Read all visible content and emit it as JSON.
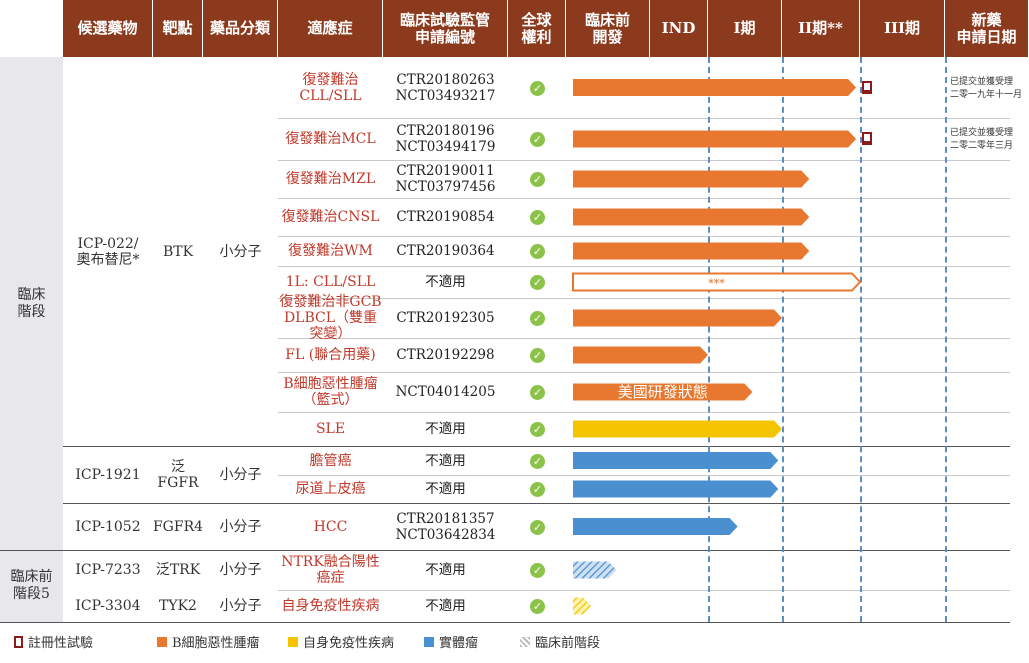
{
  "headers": [
    "候選藥物",
    "靶點",
    "藥品分類",
    "適應症",
    "臨床試驗監管\n申請編號",
    "全球\n權利",
    "臨床前\n開發",
    "IND",
    "I期",
    "II期**",
    "III期",
    "新藥\n申請日期"
  ],
  "stages": [
    {
      "label": "臨床\n階段"
    },
    {
      "label": "臨床前\n階段5"
    }
  ],
  "drug_groups": [
    {
      "drug": "ICP-022/\n奧布替尼*",
      "target": "BTK",
      "class": "小分子"
    },
    {
      "drug": "ICP-1921",
      "target": "泛FGFR",
      "class": "小分子"
    },
    {
      "drug": "ICP-1052",
      "target": "FGFR4",
      "class": "小分子"
    },
    {
      "drug": "ICP-7233",
      "target": "泛TRK",
      "class": "小分子"
    },
    {
      "drug": "ICP-3304",
      "target": "TYK2",
      "class": "小分子"
    }
  ],
  "rows": [
    {
      "indication": "復發難治CLL/SLL",
      "trial": "CTR20180263\nNCT03493217"
    },
    {
      "indication": "復發難治MCL",
      "trial": "CTR20180196\nNCT03494179"
    },
    {
      "indication": "復發難治MZL",
      "trial": "CTR20190011\nNCT03797456"
    },
    {
      "indication": "復發難治CNSL",
      "trial": "CTR20190854"
    },
    {
      "indication": "復發難治WM",
      "trial": "CTR20190364"
    },
    {
      "indication": "1L: CLL/SLL",
      "trial": "不適用"
    },
    {
      "indication": "復發難治非GCB\nDLBCL（雙重突變）",
      "trial": "CTR20192305"
    },
    {
      "indication": "FL (聯合用藥)",
      "trial": "CTR20192298"
    },
    {
      "indication": "B細胞惡性腫瘤\n（籃式）",
      "trial": "NCT04014205"
    },
    {
      "indication": "SLE",
      "trial": "不適用"
    },
    {
      "indication": "膽管癌",
      "trial": "不適用"
    },
    {
      "indication": "尿道上皮癌",
      "trial": "不適用"
    },
    {
      "indication": "HCC",
      "trial": "CTR20181357\nNCT03642834"
    },
    {
      "indication": "NTRK融合陽性癌症",
      "trial": "不適用"
    },
    {
      "indication": "自身免疫性疾病",
      "trial": "不適用"
    }
  ],
  "nda_notes": [
    "已提交並獲受理\n二零一九年十一月",
    "已提交並獲受理\n二零二零年三月"
  ],
  "chart_data": {
    "type": "bar",
    "orientation": "horizontal-progress",
    "phases": [
      "臨床前開發",
      "IND",
      "I期",
      "II期**",
      "III期",
      "新藥申請日期"
    ],
    "bars": [
      {
        "row": "復發難治CLL/SLL",
        "progress_phase": "III期",
        "progress": 3.95,
        "category": "B細胞惡性腫瘤",
        "registrational": true
      },
      {
        "row": "復發難治MCL",
        "progress_phase": "III期",
        "progress": 3.95,
        "category": "B細胞惡性腫瘤",
        "registrational": true
      },
      {
        "row": "復發難治MZL",
        "progress_phase": "II期**",
        "progress": 3.35,
        "category": "B細胞惡性腫瘤"
      },
      {
        "row": "復發難治CNSL",
        "progress_phase": "II期**",
        "progress": 3.35,
        "category": "B細胞惡性腫瘤"
      },
      {
        "row": "復發難治WM",
        "progress_phase": "II期**",
        "progress": 3.35,
        "category": "B細胞惡性腫瘤"
      },
      {
        "row": "1L: CLL/SLL",
        "progress_phase": "III期",
        "progress": 4.0,
        "category": "B細胞惡性腫瘤",
        "outline": true,
        "label": "***"
      },
      {
        "row": "復發難治非GCB DLBCL（雙重突變）",
        "progress_phase": "II期**",
        "progress": 3.0,
        "category": "B細胞惡性腫瘤"
      },
      {
        "row": "FL (聯合用藥)",
        "progress_phase": "I期",
        "progress": 2.0,
        "category": "B細胞惡性腫瘤"
      },
      {
        "row": "B細胞惡性腫瘤（籃式）",
        "progress_phase": "I期",
        "progress": 2.6,
        "category": "B細胞惡性腫瘤",
        "label": "美國研發狀態"
      },
      {
        "row": "SLE",
        "progress_phase": "II期**",
        "progress": 3.0,
        "category": "自身免疫性疾病"
      },
      {
        "row": "膽管癌",
        "progress_phase": "II期**",
        "progress": 2.95,
        "category": "實體瘤"
      },
      {
        "row": "尿道上皮癌",
        "progress_phase": "II期**",
        "progress": 2.95,
        "category": "實體瘤"
      },
      {
        "row": "HCC",
        "progress_phase": "I期",
        "progress": 2.4,
        "category": "實體瘤"
      },
      {
        "row": "NTRK融合陽性癌症",
        "progress_phase": "臨床前開發",
        "progress": 0.6,
        "category": "臨床前階段"
      },
      {
        "row": "自身免疫性疾病",
        "progress_phase": "臨床前開發",
        "progress": 0.3,
        "category": "臨床前階段"
      }
    ],
    "colors": {
      "B細胞惡性腫瘤": "#e87830",
      "自身免疫性疾病": "#f5c400",
      "實體瘤": "#4a8fd0",
      "臨床前階段": "#5b8fc4",
      "註冊性試驗": "#8b1a1a"
    }
  },
  "legend": [
    {
      "label": "註冊性試驗",
      "color": "#8b1a1a",
      "kind": "flag"
    },
    {
      "label": "B細胞惡性腫瘤",
      "color": "#e87830",
      "kind": "solid"
    },
    {
      "label": "自身免疫性疾病",
      "color": "#f5c400",
      "kind": "solid"
    },
    {
      "label": "實體瘤",
      "color": "#4a8fd0",
      "kind": "solid"
    },
    {
      "label": "臨床前階段",
      "color": "#9aa",
      "kind": "hatch"
    }
  ],
  "global_rights_icon": "check-circle-icon"
}
